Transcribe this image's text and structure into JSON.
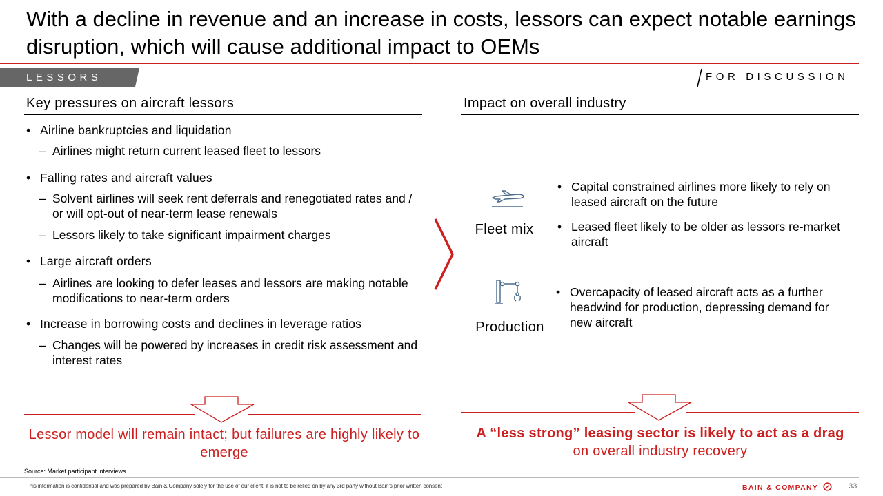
{
  "title": "With a decline in revenue and an increase in costs, lessors can expect notable earnings disruption, which will cause additional impact to OEMs",
  "section_tag": "LESSORS",
  "discussion_label": "FOR DISCUSSION",
  "left": {
    "heading": "Key pressures on aircraft lessors",
    "bullets": [
      {
        "text": "Airline bankruptcies and liquidation",
        "subs": [
          "Airlines might return current leased fleet to lessors"
        ]
      },
      {
        "text": "Falling rates and aircraft values",
        "subs": [
          "Solvent airlines will seek rent deferrals and renegotiated rates and / or will opt-out of near-term lease renewals",
          "Lessors likely to take significant impairment charges"
        ]
      },
      {
        "text": "Large aircraft orders",
        "subs": [
          "Airlines are looking to defer leases and lessors are making notable modifications to near-term orders"
        ]
      },
      {
        "text": "Increase in borrowing costs and declines in leverage ratios",
        "subs": [
          "Changes will be powered by increases in credit risk assessment and interest rates"
        ]
      }
    ],
    "conclusion": "Lessor model will remain intact; but failures are highly likely to emerge"
  },
  "right": {
    "heading": "Impact on overall industry",
    "categories": [
      {
        "label": "Fleet mix",
        "icon": "airplane-icon",
        "bullets": [
          "Capital constrained airlines more likely to rely on leased aircraft on the future",
          "Leased fleet likely to be older as lessors re-market aircraft"
        ]
      },
      {
        "label": "Production",
        "icon": "robotic-arm-icon",
        "bullets": [
          "Overcapacity of leased aircraft acts as a further headwind for production, depressing demand for new aircraft"
        ]
      }
    ],
    "conclusion_bold": "A “less strong” leasing sector is likely to act as a drag",
    "conclusion_rest": "on overall industry recovery"
  },
  "source": "Source: Market participant interviews",
  "disclaimer": "This information is confidential and was prepared by Bain & Company solely for the use of our client; it is not to be relied on by any 3rd party without Bain's prior written consent",
  "brand": "BAIN & COMPANY",
  "page_number": "33",
  "colors": {
    "accent": "#cc1f1f",
    "tag_bg": "#666666"
  }
}
